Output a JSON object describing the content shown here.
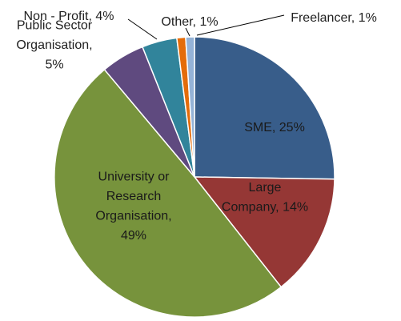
{
  "chart_data": {
    "type": "pie",
    "title": "",
    "start_angle_deg": 0,
    "direction": "clockwise",
    "slices": [
      {
        "key": "sme",
        "name": "SME",
        "value": 25,
        "label": "SME, 25%",
        "color": "#385D8A"
      },
      {
        "key": "large",
        "name": "Large Company",
        "value": 14,
        "label": "Large Company, 14%",
        "color": "#953735"
      },
      {
        "key": "uni",
        "name": "University or Research Organisation",
        "value": 49,
        "label": "University or Research Organisation, 49%",
        "color": "#77933C"
      },
      {
        "key": "public",
        "name": "Public Sector Organisation",
        "value": 5,
        "label": "Public Sector Organisation, 5%",
        "color": "#5F4A7F"
      },
      {
        "key": "nonprofit",
        "name": "Non - Profit",
        "value": 4,
        "label": "Non - Profit, 4%",
        "color": "#31849B"
      },
      {
        "key": "other",
        "name": "Other",
        "value": 1,
        "label": "Other, 1%",
        "color": "#E46C0A"
      },
      {
        "key": "freelancer",
        "name": "Freelancer",
        "value": 1,
        "label": "Freelancer, 1%",
        "color": "#95B3D7"
      }
    ]
  }
}
